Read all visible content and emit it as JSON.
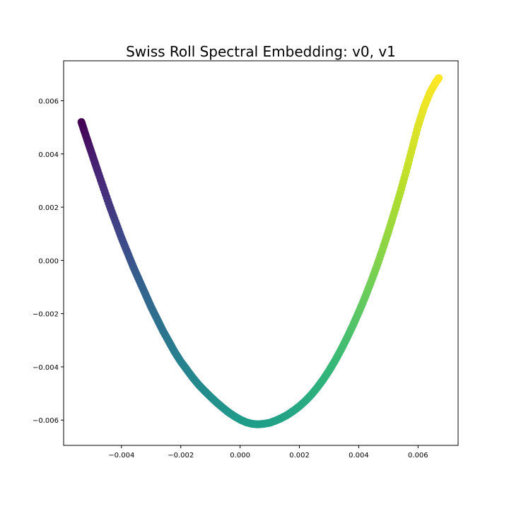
{
  "chart_data": {
    "type": "scatter",
    "title": "Swiss Roll Spectral Embedding: v0, v1",
    "xlabel": "",
    "ylabel": "",
    "xlim": [
      -0.00595,
      0.00735
    ],
    "ylim": [
      -0.00695,
      0.0075
    ],
    "xticks": [
      -0.004,
      -0.002,
      0.0,
      0.002,
      0.004,
      0.006
    ],
    "xtick_labels": [
      "−0.004",
      "−0.002",
      "0.000",
      "0.002",
      "0.004",
      "0.006"
    ],
    "yticks": [
      -0.006,
      -0.004,
      -0.002,
      0.0,
      0.002,
      0.004,
      0.006
    ],
    "ytick_labels": [
      "−0.006",
      "−0.004",
      "−0.002",
      "0.000",
      "0.002",
      "0.004",
      "0.006"
    ],
    "grid": false,
    "colormap": "viridis",
    "colormap_stops": [
      "#440154",
      "#482878",
      "#3e4989",
      "#31688e",
      "#26828e",
      "#1f9e89",
      "#35b779",
      "#6ece58",
      "#b5de2b",
      "#fde725"
    ],
    "points": [
      {
        "x": -0.00535,
        "y": 0.0052,
        "c": 0.0
      },
      {
        "x": -0.00525,
        "y": 0.00485,
        "c": 0.02
      },
      {
        "x": -0.0051,
        "y": 0.00435,
        "c": 0.05
      },
      {
        "x": -0.00495,
        "y": 0.00385,
        "c": 0.08
      },
      {
        "x": -0.0048,
        "y": 0.00335,
        "c": 0.1
      },
      {
        "x": -0.0046,
        "y": 0.0027,
        "c": 0.13
      },
      {
        "x": -0.0044,
        "y": 0.00205,
        "c": 0.16
      },
      {
        "x": -0.0042,
        "y": 0.00145,
        "c": 0.19
      },
      {
        "x": -0.004,
        "y": 0.00085,
        "c": 0.22
      },
      {
        "x": -0.0038,
        "y": 0.0003,
        "c": 0.24
      },
      {
        "x": -0.0036,
        "y": -0.00025,
        "c": 0.27
      },
      {
        "x": -0.0034,
        "y": -0.00075,
        "c": 0.3
      },
      {
        "x": -0.0032,
        "y": -0.00125,
        "c": 0.32
      },
      {
        "x": -0.003,
        "y": -0.00175,
        "c": 0.34
      },
      {
        "x": -0.0028,
        "y": -0.0022,
        "c": 0.36
      },
      {
        "x": -0.0026,
        "y": -0.00265,
        "c": 0.38
      },
      {
        "x": -0.0024,
        "y": -0.00305,
        "c": 0.4
      },
      {
        "x": -0.0022,
        "y": -0.00345,
        "c": 0.42
      },
      {
        "x": -0.002,
        "y": -0.0038,
        "c": 0.44
      },
      {
        "x": -0.0018,
        "y": -0.0041,
        "c": 0.45
      },
      {
        "x": -0.0016,
        "y": -0.0044,
        "c": 0.46
      },
      {
        "x": -0.0014,
        "y": -0.00467,
        "c": 0.47
      },
      {
        "x": -0.0012,
        "y": -0.0049,
        "c": 0.48
      },
      {
        "x": -0.001,
        "y": -0.00512,
        "c": 0.49
      },
      {
        "x": -0.0008,
        "y": -0.00533,
        "c": 0.5
      },
      {
        "x": -0.0006,
        "y": -0.00552,
        "c": 0.51
      },
      {
        "x": -0.0004,
        "y": -0.0057,
        "c": 0.52
      },
      {
        "x": -0.0002,
        "y": -0.00585,
        "c": 0.53
      },
      {
        "x": 0.0,
        "y": -0.00598,
        "c": 0.54
      },
      {
        "x": 0.0002,
        "y": -0.00608,
        "c": 0.545
      },
      {
        "x": 0.0004,
        "y": -0.00614,
        "c": 0.55
      },
      {
        "x": 0.0006,
        "y": -0.00616,
        "c": 0.555
      },
      {
        "x": 0.0008,
        "y": -0.00614,
        "c": 0.56
      },
      {
        "x": 0.001,
        "y": -0.0061,
        "c": 0.565
      },
      {
        "x": 0.0012,
        "y": -0.00602,
        "c": 0.57
      },
      {
        "x": 0.0014,
        "y": -0.00592,
        "c": 0.575
      },
      {
        "x": 0.0016,
        "y": -0.0058,
        "c": 0.58
      },
      {
        "x": 0.0018,
        "y": -0.00565,
        "c": 0.59
      },
      {
        "x": 0.002,
        "y": -0.00548,
        "c": 0.6
      },
      {
        "x": 0.0022,
        "y": -0.00528,
        "c": 0.61
      },
      {
        "x": 0.0024,
        "y": -0.00505,
        "c": 0.62
      },
      {
        "x": 0.0026,
        "y": -0.00478,
        "c": 0.63
      },
      {
        "x": 0.0028,
        "y": -0.00448,
        "c": 0.64
      },
      {
        "x": 0.003,
        "y": -0.00414,
        "c": 0.66
      },
      {
        "x": 0.0032,
        "y": -0.00377,
        "c": 0.67
      },
      {
        "x": 0.0034,
        "y": -0.00336,
        "c": 0.69
      },
      {
        "x": 0.0036,
        "y": -0.00292,
        "c": 0.7
      },
      {
        "x": 0.0038,
        "y": -0.00245,
        "c": 0.72
      },
      {
        "x": 0.004,
        "y": -0.00195,
        "c": 0.74
      },
      {
        "x": 0.0042,
        "y": -0.00142,
        "c": 0.76
      },
      {
        "x": 0.0044,
        "y": -0.00085,
        "c": 0.78
      },
      {
        "x": 0.0046,
        "y": -0.00025,
        "c": 0.8
      },
      {
        "x": 0.0048,
        "y": 0.0004,
        "c": 0.82
      },
      {
        "x": 0.005,
        "y": 0.00108,
        "c": 0.84
      },
      {
        "x": 0.0052,
        "y": 0.0018,
        "c": 0.86
      },
      {
        "x": 0.0054,
        "y": 0.00255,
        "c": 0.88
      },
      {
        "x": 0.0056,
        "y": 0.00335,
        "c": 0.91
      },
      {
        "x": 0.0058,
        "y": 0.0042,
        "c": 0.93
      },
      {
        "x": 0.006,
        "y": 0.00505,
        "c": 0.95
      },
      {
        "x": 0.0062,
        "y": 0.00575,
        "c": 0.97
      },
      {
        "x": 0.0064,
        "y": 0.0063,
        "c": 0.98
      },
      {
        "x": 0.0066,
        "y": 0.0067,
        "c": 0.99
      },
      {
        "x": 0.0067,
        "y": 0.00685,
        "c": 1.0
      }
    ]
  }
}
